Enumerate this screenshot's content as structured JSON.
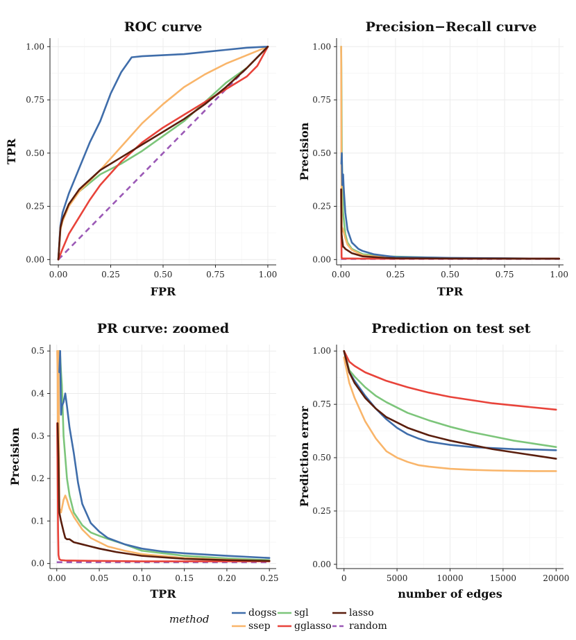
{
  "legend": {
    "title": "method",
    "entries": [
      {
        "key": "dogss",
        "label": "dogss",
        "color": "#3F6DAA"
      },
      {
        "key": "ssep",
        "label": "ssep",
        "color": "#F9B56A"
      },
      {
        "key": "sgl",
        "label": "sgl",
        "color": "#7CC57A"
      },
      {
        "key": "gglasso",
        "label": "gglasso",
        "color": "#E8433A"
      },
      {
        "key": "lasso",
        "label": "lasso",
        "color": "#5A1E0D"
      },
      {
        "key": "random",
        "label": "random",
        "color": "#9B59B6"
      }
    ]
  },
  "chart_data": [
    {
      "type": "line",
      "title": "ROC curve",
      "xlabel": "FPR",
      "ylabel": "TPR",
      "xlim": [
        -0.04,
        1.04
      ],
      "ylim": [
        -0.025,
        1.04
      ],
      "xticks": [
        0,
        0.25,
        0.5,
        0.75,
        1
      ],
      "xtick_labels": [
        "0.00",
        "0.25",
        "0.50",
        "0.75",
        "1.00"
      ],
      "yticks": [
        0,
        0.25,
        0.5,
        0.75,
        1
      ],
      "ytick_labels": [
        "0.00",
        "0.25",
        "0.50",
        "0.75",
        "1.00"
      ],
      "series": [
        {
          "name": "dogss",
          "style": "solid",
          "x": [
            0,
            0.01,
            0.02,
            0.05,
            0.1,
            0.15,
            0.2,
            0.25,
            0.3,
            0.35,
            0.4,
            0.5,
            0.6,
            0.7,
            0.8,
            0.9,
            1.0
          ],
          "y": [
            0,
            0.16,
            0.22,
            0.31,
            0.43,
            0.55,
            0.65,
            0.78,
            0.88,
            0.95,
            0.955,
            0.96,
            0.965,
            0.975,
            0.985,
            0.995,
            1.0
          ]
        },
        {
          "name": "ssep",
          "style": "solid",
          "x": [
            0,
            0.01,
            0.02,
            0.05,
            0.1,
            0.2,
            0.3,
            0.4,
            0.5,
            0.6,
            0.7,
            0.8,
            0.9,
            1.0
          ],
          "y": [
            0,
            0.14,
            0.18,
            0.25,
            0.32,
            0.42,
            0.53,
            0.64,
            0.73,
            0.81,
            0.87,
            0.92,
            0.96,
            1.0
          ]
        },
        {
          "name": "sgl",
          "style": "solid",
          "x": [
            0,
            0.01,
            0.02,
            0.05,
            0.1,
            0.2,
            0.3,
            0.4,
            0.5,
            0.6,
            0.7,
            0.8,
            0.9,
            1.0
          ],
          "y": [
            0,
            0.15,
            0.19,
            0.26,
            0.32,
            0.4,
            0.45,
            0.51,
            0.58,
            0.65,
            0.74,
            0.83,
            0.9,
            1.0
          ]
        },
        {
          "name": "gglasso",
          "style": "solid",
          "x": [
            0,
            0.02,
            0.05,
            0.1,
            0.15,
            0.2,
            0.3,
            0.4,
            0.5,
            0.6,
            0.7,
            0.8,
            0.9,
            0.95,
            1.0
          ],
          "y": [
            0,
            0.05,
            0.12,
            0.2,
            0.28,
            0.35,
            0.46,
            0.55,
            0.62,
            0.68,
            0.74,
            0.8,
            0.86,
            0.91,
            1.0
          ]
        },
        {
          "name": "lasso",
          "style": "solid",
          "x": [
            0,
            0.01,
            0.02,
            0.05,
            0.1,
            0.2,
            0.3,
            0.4,
            0.5,
            0.6,
            0.7,
            0.8,
            0.9,
            1.0
          ],
          "y": [
            0,
            0.15,
            0.19,
            0.26,
            0.33,
            0.42,
            0.48,
            0.54,
            0.6,
            0.66,
            0.73,
            0.81,
            0.9,
            1.0
          ]
        },
        {
          "name": "random",
          "style": "dashed",
          "x": [
            0,
            1
          ],
          "y": [
            0,
            1
          ]
        }
      ]
    },
    {
      "type": "line",
      "title": "Precision−Recall curve",
      "xlabel": "TPR",
      "ylabel": "Precision",
      "xlim": [
        -0.02,
        1.02
      ],
      "ylim": [
        -0.025,
        1.04
      ],
      "xticks": [
        0,
        0.25,
        0.5,
        0.75,
        1
      ],
      "xtick_labels": [
        "0.00",
        "0.25",
        "0.50",
        "0.75",
        "1.00"
      ],
      "yticks": [
        0,
        0.25,
        0.5,
        0.75,
        1
      ],
      "ytick_labels": [
        "0.00",
        "0.25",
        "0.50",
        "0.75",
        "1.00"
      ],
      "series": [
        {
          "name": "dogss",
          "style": "solid",
          "x": [
            0.002,
            0.004,
            0.006,
            0.008,
            0.01,
            0.012,
            0.015,
            0.02,
            0.03,
            0.05,
            0.08,
            0.1,
            0.15,
            0.2,
            0.25,
            0.5,
            0.75,
            1.0
          ],
          "y": [
            0.45,
            0.5,
            0.35,
            0.38,
            0.4,
            0.35,
            0.3,
            0.22,
            0.14,
            0.08,
            0.05,
            0.04,
            0.025,
            0.018,
            0.012,
            0.008,
            0.006,
            0.004
          ]
        },
        {
          "name": "ssep",
          "style": "solid",
          "x": [
            0.001,
            0.002,
            0.004,
            0.006,
            0.01,
            0.015,
            0.02,
            0.03,
            0.05,
            0.1,
            0.2,
            0.5,
            1.0
          ],
          "y": [
            1.0,
            0.5,
            0.13,
            0.15,
            0.14,
            0.12,
            0.1,
            0.07,
            0.045,
            0.02,
            0.01,
            0.006,
            0.004
          ]
        },
        {
          "name": "sgl",
          "style": "solid",
          "x": [
            0.001,
            0.002,
            0.004,
            0.006,
            0.008,
            0.01,
            0.015,
            0.02,
            0.03,
            0.05,
            0.1,
            0.2,
            0.5,
            1.0
          ],
          "y": [
            1.0,
            0.9,
            0.5,
            0.4,
            0.3,
            0.22,
            0.17,
            0.12,
            0.08,
            0.05,
            0.025,
            0.015,
            0.007,
            0.004
          ]
        },
        {
          "name": "gglasso",
          "style": "solid",
          "x": [
            0.001,
            0.002,
            0.003,
            0.005,
            0.01,
            0.05,
            0.1,
            0.25,
            1.0
          ],
          "y": [
            0.33,
            0.1,
            0.01,
            0.006,
            0.005,
            0.005,
            0.004,
            0.004,
            0.004
          ]
        },
        {
          "name": "lasso",
          "style": "solid",
          "x": [
            0.001,
            0.002,
            0.003,
            0.005,
            0.01,
            0.015,
            0.02,
            0.05,
            0.1,
            0.2,
            0.25,
            0.5,
            1.0
          ],
          "y": [
            0.33,
            0.15,
            0.12,
            0.1,
            0.06,
            0.057,
            0.05,
            0.03,
            0.015,
            0.008,
            0.006,
            0.005,
            0.004
          ]
        },
        {
          "name": "random",
          "style": "dashed",
          "x": [
            0,
            1
          ],
          "y": [
            0.003,
            0.003
          ]
        }
      ]
    },
    {
      "type": "line",
      "title": "PR curve: zoomed",
      "xlabel": "TPR",
      "ylabel": "Precision",
      "xlim": [
        -0.008,
        0.258
      ],
      "ylim": [
        -0.012,
        0.515
      ],
      "xticks": [
        0,
        0.05,
        0.1,
        0.15,
        0.2,
        0.25
      ],
      "xtick_labels": [
        "0.00",
        "0.05",
        "0.10",
        "0.15",
        "0.20",
        "0.25"
      ],
      "yticks": [
        0,
        0.1,
        0.2,
        0.3,
        0.4,
        0.5
      ],
      "ytick_labels": [
        "0.0",
        "0.1",
        "0.2",
        "0.3",
        "0.4",
        "0.5"
      ],
      "series": [
        {
          "name": "dogss",
          "style": "solid",
          "x": [
            0.003,
            0.004,
            0.005,
            0.006,
            0.008,
            0.01,
            0.012,
            0.015,
            0.02,
            0.025,
            0.03,
            0.04,
            0.05,
            0.06,
            0.08,
            0.1,
            0.125,
            0.15,
            0.2,
            0.25
          ],
          "y": [
            0.45,
            0.5,
            0.35,
            0.37,
            0.38,
            0.4,
            0.37,
            0.32,
            0.26,
            0.19,
            0.14,
            0.095,
            0.075,
            0.06,
            0.045,
            0.035,
            0.028,
            0.024,
            0.018,
            0.013
          ]
        },
        {
          "name": "ssep",
          "style": "solid",
          "x": [
            0.0005,
            0.001,
            0.0015,
            0.002,
            0.003,
            0.005,
            0.008,
            0.01,
            0.012,
            0.015,
            0.02,
            0.025,
            0.03,
            0.04,
            0.05,
            0.06,
            0.08,
            0.1,
            0.15,
            0.2,
            0.25
          ],
          "y": [
            0.5,
            0.45,
            0.2,
            0.5,
            0.13,
            0.12,
            0.15,
            0.16,
            0.15,
            0.13,
            0.11,
            0.095,
            0.08,
            0.06,
            0.05,
            0.04,
            0.03,
            0.022,
            0.013,
            0.009,
            0.006
          ]
        },
        {
          "name": "sgl",
          "style": "solid",
          "x": [
            0.002,
            0.003,
            0.004,
            0.005,
            0.006,
            0.008,
            0.01,
            0.012,
            0.015,
            0.02,
            0.03,
            0.04,
            0.05,
            0.06,
            0.08,
            0.1,
            0.15,
            0.2,
            0.25
          ],
          "y": [
            0.48,
            0.5,
            0.49,
            0.45,
            0.42,
            0.3,
            0.25,
            0.2,
            0.16,
            0.12,
            0.09,
            0.073,
            0.065,
            0.058,
            0.045,
            0.03,
            0.018,
            0.012,
            0.008
          ]
        },
        {
          "name": "gglasso",
          "style": "solid",
          "x": [
            0.0005,
            0.001,
            0.0015,
            0.002,
            0.003,
            0.005,
            0.01,
            0.05,
            0.1,
            0.15,
            0.2,
            0.25
          ],
          "y": [
            0.33,
            0.2,
            0.08,
            0.02,
            0.01,
            0.008,
            0.007,
            0.006,
            0.005,
            0.005,
            0.005,
            0.005
          ]
        },
        {
          "name": "lasso",
          "style": "solid",
          "x": [
            0.001,
            0.002,
            0.003,
            0.005,
            0.008,
            0.01,
            0.012,
            0.015,
            0.02,
            0.03,
            0.05,
            0.07,
            0.1,
            0.15,
            0.2,
            0.25
          ],
          "y": [
            0.33,
            0.25,
            0.12,
            0.1,
            0.075,
            0.06,
            0.057,
            0.057,
            0.05,
            0.045,
            0.035,
            0.027,
            0.018,
            0.011,
            0.008,
            0.006
          ]
        },
        {
          "name": "random",
          "style": "dashed",
          "x": [
            0,
            0.25
          ],
          "y": [
            0.003,
            0.003
          ]
        }
      ]
    },
    {
      "type": "line",
      "title": "Prediction on test set",
      "xlabel": "number of edges",
      "ylabel": "Prediction error",
      "xlim": [
        -700,
        20700
      ],
      "ylim": [
        -0.02,
        1.03
      ],
      "xticks": [
        0,
        5000,
        10000,
        15000,
        20000
      ],
      "xtick_labels": [
        "0",
        "5000",
        "10000",
        "15000",
        "20000"
      ],
      "yticks": [
        0,
        0.25,
        0.5,
        0.75,
        1
      ],
      "ytick_labels": [
        "0.00",
        "0.25",
        "0.50",
        "0.75",
        "1.00"
      ],
      "series": [
        {
          "name": "dogss",
          "style": "solid",
          "x": [
            0,
            500,
            1000,
            2000,
            3000,
            4000,
            5000,
            6000,
            7000,
            8000,
            10000,
            12000,
            14000,
            16000,
            18000,
            20000
          ],
          "y": [
            1.0,
            0.9,
            0.86,
            0.79,
            0.73,
            0.68,
            0.64,
            0.61,
            0.59,
            0.575,
            0.56,
            0.55,
            0.545,
            0.54,
            0.538,
            0.535
          ]
        },
        {
          "name": "ssep",
          "style": "solid",
          "x": [
            0,
            500,
            1000,
            2000,
            3000,
            4000,
            5000,
            6000,
            7000,
            8000,
            10000,
            12000,
            14000,
            16000,
            18000,
            20000
          ],
          "y": [
            0.97,
            0.85,
            0.78,
            0.67,
            0.59,
            0.53,
            0.5,
            0.48,
            0.465,
            0.458,
            0.448,
            0.443,
            0.44,
            0.438,
            0.437,
            0.437
          ]
        },
        {
          "name": "sgl",
          "style": "solid",
          "x": [
            0,
            500,
            1000,
            2000,
            3000,
            4000,
            6000,
            8000,
            10000,
            12000,
            14000,
            16000,
            18000,
            20000
          ],
          "y": [
            1.0,
            0.91,
            0.88,
            0.83,
            0.79,
            0.76,
            0.71,
            0.675,
            0.645,
            0.62,
            0.6,
            0.58,
            0.565,
            0.55
          ]
        },
        {
          "name": "gglasso",
          "style": "solid",
          "x": [
            0,
            500,
            1000,
            2000,
            3000,
            4000,
            6000,
            8000,
            10000,
            12000,
            14000,
            16000,
            18000,
            20000
          ],
          "y": [
            1.0,
            0.95,
            0.93,
            0.9,
            0.88,
            0.86,
            0.83,
            0.805,
            0.785,
            0.77,
            0.755,
            0.745,
            0.735,
            0.725
          ]
        },
        {
          "name": "lasso",
          "style": "solid",
          "x": [
            0,
            500,
            1000,
            2000,
            3000,
            4000,
            6000,
            8000,
            10000,
            12000,
            14000,
            16000,
            18000,
            20000
          ],
          "y": [
            1.0,
            0.9,
            0.85,
            0.78,
            0.73,
            0.69,
            0.64,
            0.605,
            0.58,
            0.56,
            0.54,
            0.525,
            0.51,
            0.495
          ]
        }
      ]
    }
  ]
}
